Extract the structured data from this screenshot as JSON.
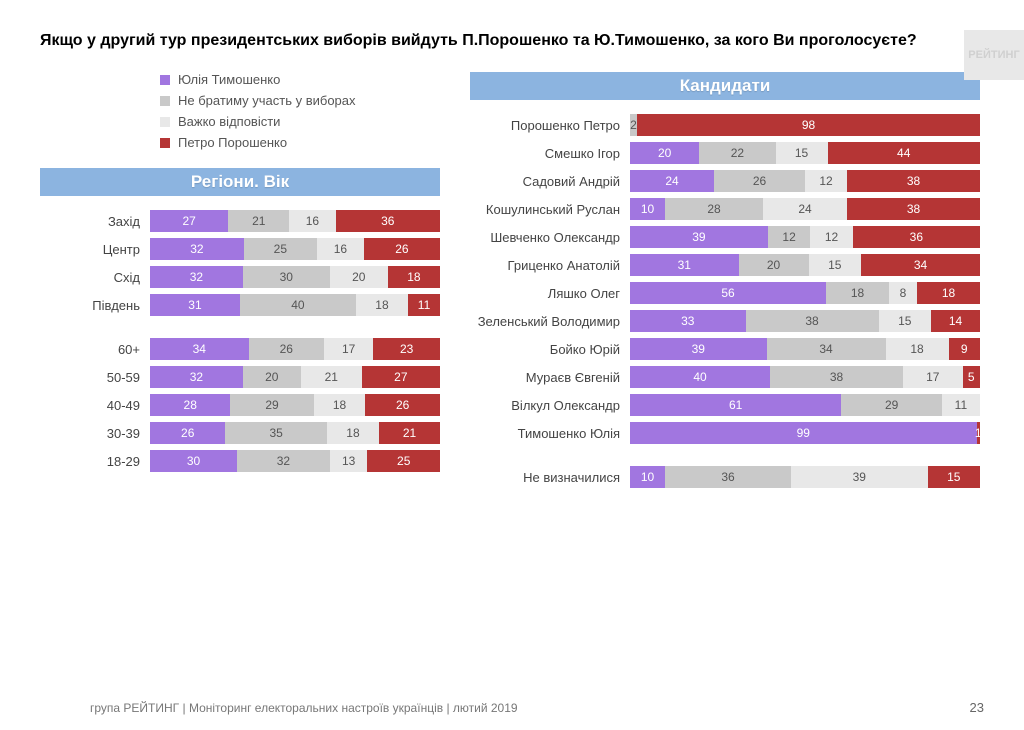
{
  "title": "Якщо у другий тур президентських виборів вийдуть П.Порошенко та Ю.Тимошенко, за кого Ви проголосуєте?",
  "watermark": "РЕЙТИНГ",
  "footer": "група РЕЙТИНГ | Моніторинг електоральних настроїв українців | лютий 2019",
  "page_number": "23",
  "colors": {
    "tymoshenko": "#a176e0",
    "no_participate": "#c9c9c9",
    "hard_answer": "#e8e8e8",
    "poroshenko": "#b53535",
    "header_blue": "#8cb4e0"
  },
  "legend": [
    {
      "label": "Юлія Тимошенко",
      "color": "#a176e0"
    },
    {
      "label": "Не братиму участь у виборах",
      "color": "#c9c9c9"
    },
    {
      "label": "Важко відповісти",
      "color": "#e8e8e8"
    },
    {
      "label": "Петро Порошенко",
      "color": "#b53535"
    }
  ],
  "left_header": "Регіони. Вік",
  "right_header": "Кандидати",
  "regions": [
    {
      "label": "Захід",
      "v": [
        27,
        21,
        16,
        36
      ]
    },
    {
      "label": "Центр",
      "v": [
        32,
        25,
        16,
        26
      ]
    },
    {
      "label": "Схід",
      "v": [
        32,
        30,
        20,
        18
      ]
    },
    {
      "label": "Південь",
      "v": [
        31,
        40,
        18,
        11
      ]
    }
  ],
  "ages": [
    {
      "label": "60+",
      "v": [
        34,
        26,
        17,
        23
      ]
    },
    {
      "label": "50-59",
      "v": [
        32,
        20,
        21,
        27
      ]
    },
    {
      "label": "40-49",
      "v": [
        28,
        29,
        18,
        26
      ]
    },
    {
      "label": "30-39",
      "v": [
        26,
        35,
        18,
        21
      ]
    },
    {
      "label": "18-29",
      "v": [
        30,
        32,
        13,
        25
      ]
    }
  ],
  "candidates": [
    {
      "label": "Порошенко Петро",
      "v": [
        0,
        2,
        0,
        98
      ]
    },
    {
      "label": "Смешко Ігор",
      "v": [
        20,
        22,
        15,
        44
      ]
    },
    {
      "label": "Садовий Андрій",
      "v": [
        24,
        26,
        12,
        38
      ]
    },
    {
      "label": "Кошулинський Руслан",
      "v": [
        10,
        28,
        24,
        38
      ]
    },
    {
      "label": "Шевченко Олександр",
      "v": [
        39,
        12,
        12,
        36
      ]
    },
    {
      "label": "Гриценко Анатолій",
      "v": [
        31,
        20,
        15,
        34
      ]
    },
    {
      "label": "Ляшко Олег",
      "v": [
        56,
        18,
        8,
        18
      ]
    },
    {
      "label": "Зеленський Володимир",
      "v": [
        33,
        38,
        15,
        14
      ]
    },
    {
      "label": "Бойко Юрій",
      "v": [
        39,
        34,
        18,
        9
      ]
    },
    {
      "label": "Мураєв Євгеній",
      "v": [
        40,
        38,
        17,
        5
      ]
    },
    {
      "label": "Вілкул Олександр",
      "v": [
        61,
        29,
        11,
        0
      ]
    },
    {
      "label": "Тимошенко Юлія",
      "v": [
        99,
        0,
        0,
        1
      ]
    }
  ],
  "undecided": [
    {
      "label": "Не визначилися",
      "v": [
        10,
        36,
        39,
        15
      ]
    }
  ]
}
